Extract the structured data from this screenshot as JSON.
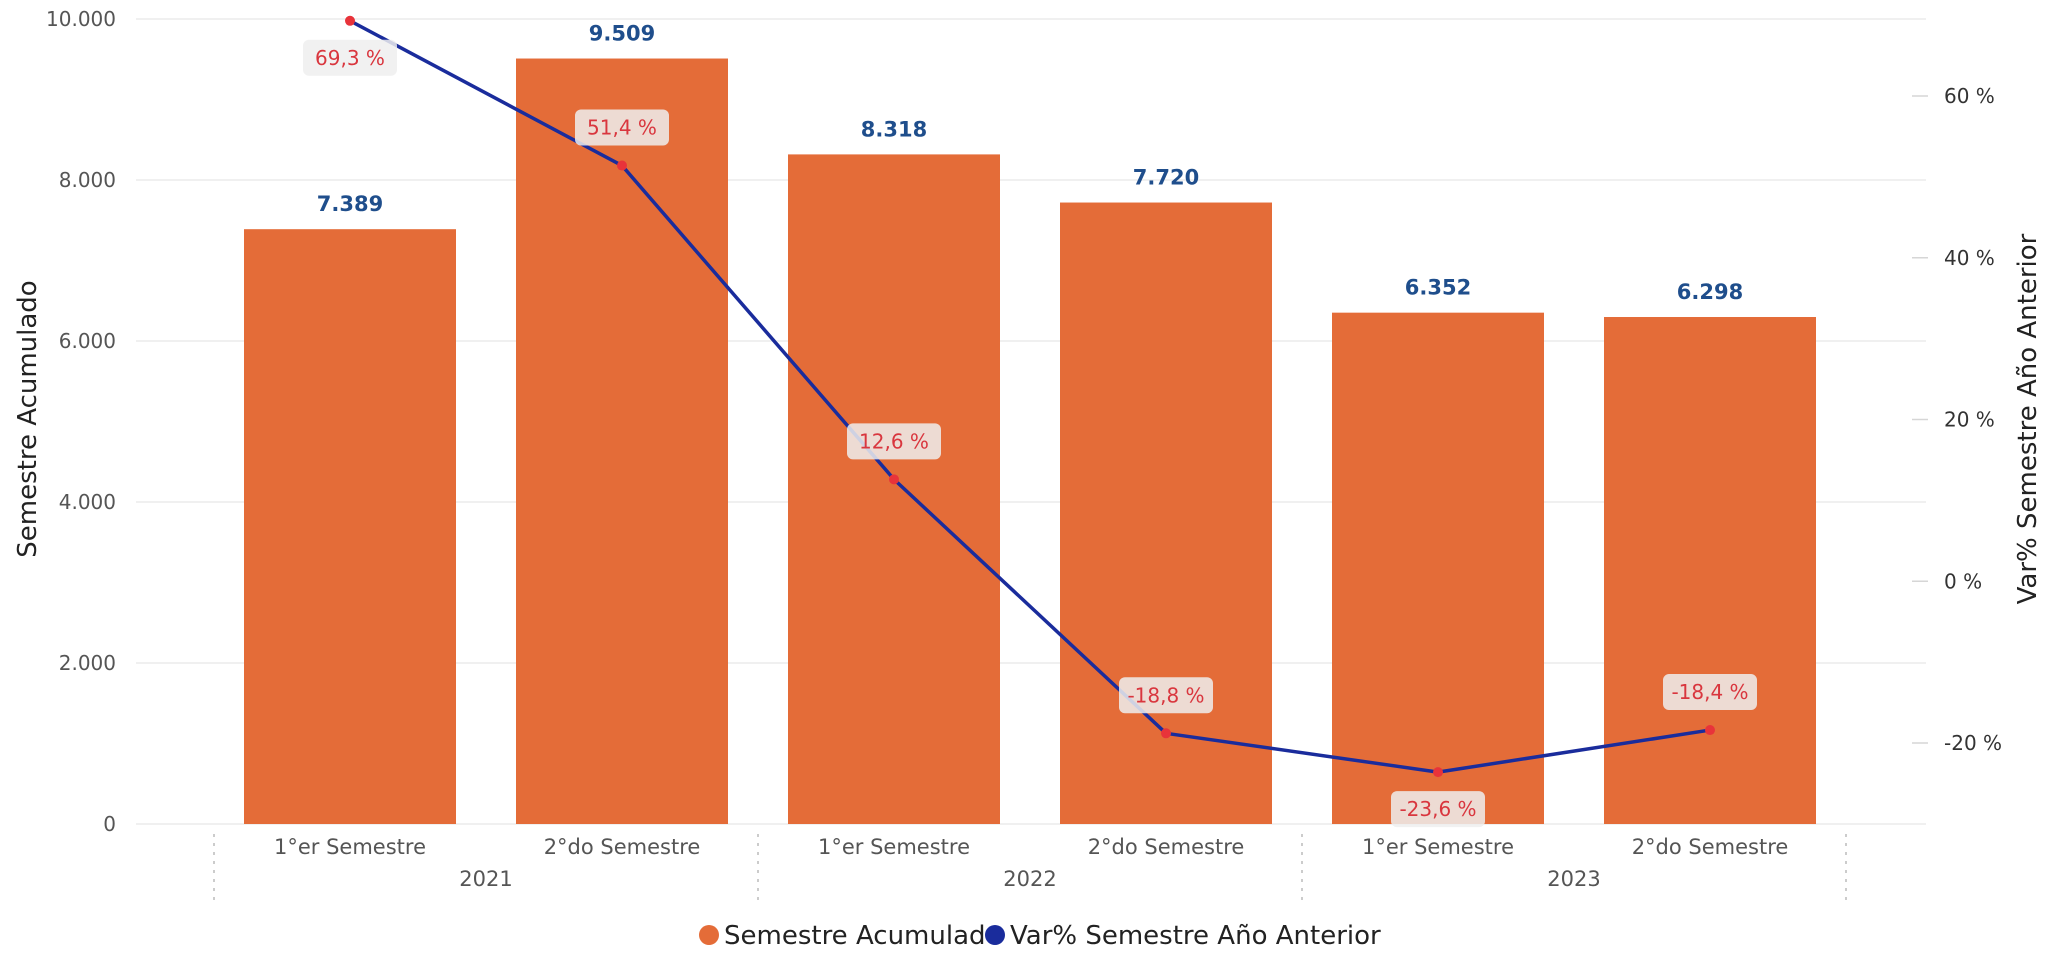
{
  "chart_data": {
    "type": "bar",
    "categories": [
      "1°er Semestre",
      "2°do Semestre",
      "1°er Semestre",
      "2°do Semestre",
      "1°er Semestre",
      "2°do Semestre"
    ],
    "groups": [
      {
        "label": "2021",
        "count": 2
      },
      {
        "label": "2022",
        "count": 2
      },
      {
        "label": "2023",
        "count": 2
      }
    ],
    "series": [
      {
        "name": "Semestre Acumulado",
        "type": "bar",
        "axis": "left",
        "color": "#e46c38",
        "values": [
          7389,
          9509,
          8318,
          7720,
          6352,
          6298
        ],
        "labels": [
          "7.389",
          "9.509",
          "8.318",
          "7.720",
          "6.352",
          "6.298"
        ]
      },
      {
        "name": "Var% Semestre Año Anterior",
        "type": "line",
        "axis": "right",
        "color": "#1a2c9c",
        "values": [
          69.3,
          51.4,
          12.6,
          -18.8,
          -23.6,
          -18.4
        ],
        "labels": [
          "69,3 %",
          "51,4 %",
          "12,6 %",
          "-18,8 %",
          "-23,6 %",
          "-18,4 %"
        ]
      }
    ],
    "ylabel": "Semestre Acumulado",
    "y2label": "Var% Semestre Año Anterior",
    "ylim": [
      0,
      10000
    ],
    "y2lim": [
      -30,
      70
    ],
    "yticks": [
      0,
      2000,
      4000,
      6000,
      8000,
      10000
    ],
    "ytick_labels": [
      "0",
      "2.000",
      "4.000",
      "6.000",
      "8.000",
      "10.000"
    ],
    "y2ticks": [
      -20,
      0,
      20,
      40,
      60
    ],
    "y2tick_labels": [
      "-20 %",
      "0 %",
      "20 %",
      "40 %",
      "60 %"
    ],
    "grid": true,
    "legend_position": "bottom-center",
    "label_colors": {
      "bar_labels": "#1f4e8c",
      "pct_labels": "#d9363e",
      "marker": "#e8333a"
    }
  }
}
